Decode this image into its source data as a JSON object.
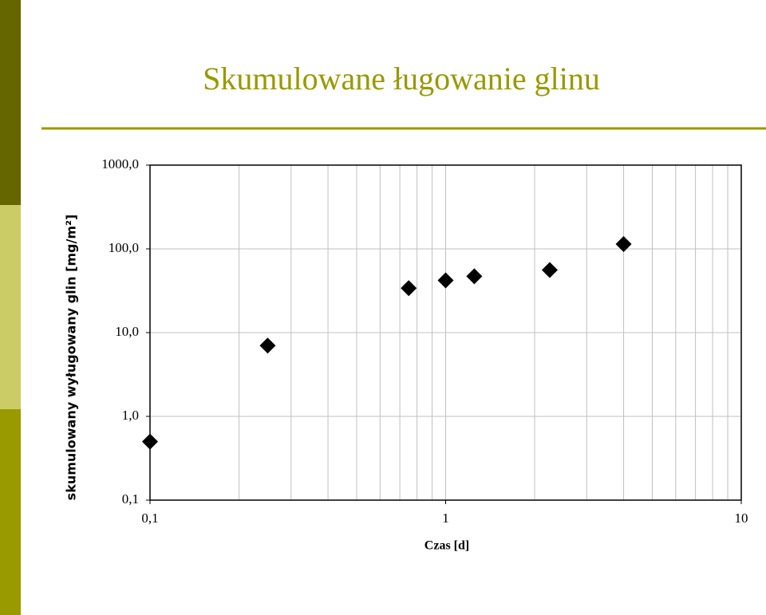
{
  "chart_data": {
    "type": "scatter",
    "title": "Skumulowane ługowanie glinu",
    "xlabel": "Czas [d]",
    "ylabel": "skumulowany wyługowany glin [mg/m²]",
    "x": [
      0.1,
      0.25,
      0.75,
      1,
      1.25,
      2.25,
      4
    ],
    "values": [
      0.5,
      7,
      34,
      42,
      47,
      56,
      114
    ],
    "color": "#000000",
    "xscale": "log",
    "yscale": "log",
    "xlim": [
      0.1,
      10
    ],
    "ylim": [
      0.1,
      1000
    ],
    "xticks": [
      {
        "value": 0.1,
        "label": "0,1"
      },
      1,
      10
    ],
    "yticks": [
      {
        "value": 0.1,
        "label": "0,1"
      },
      {
        "value": 1,
        "label": "1,0"
      },
      {
        "value": 10,
        "label": "10,0"
      },
      {
        "value": 100,
        "label": "100,0"
      },
      {
        "value": 1000,
        "label": "1000,0"
      }
    ],
    "grid": true
  }
}
